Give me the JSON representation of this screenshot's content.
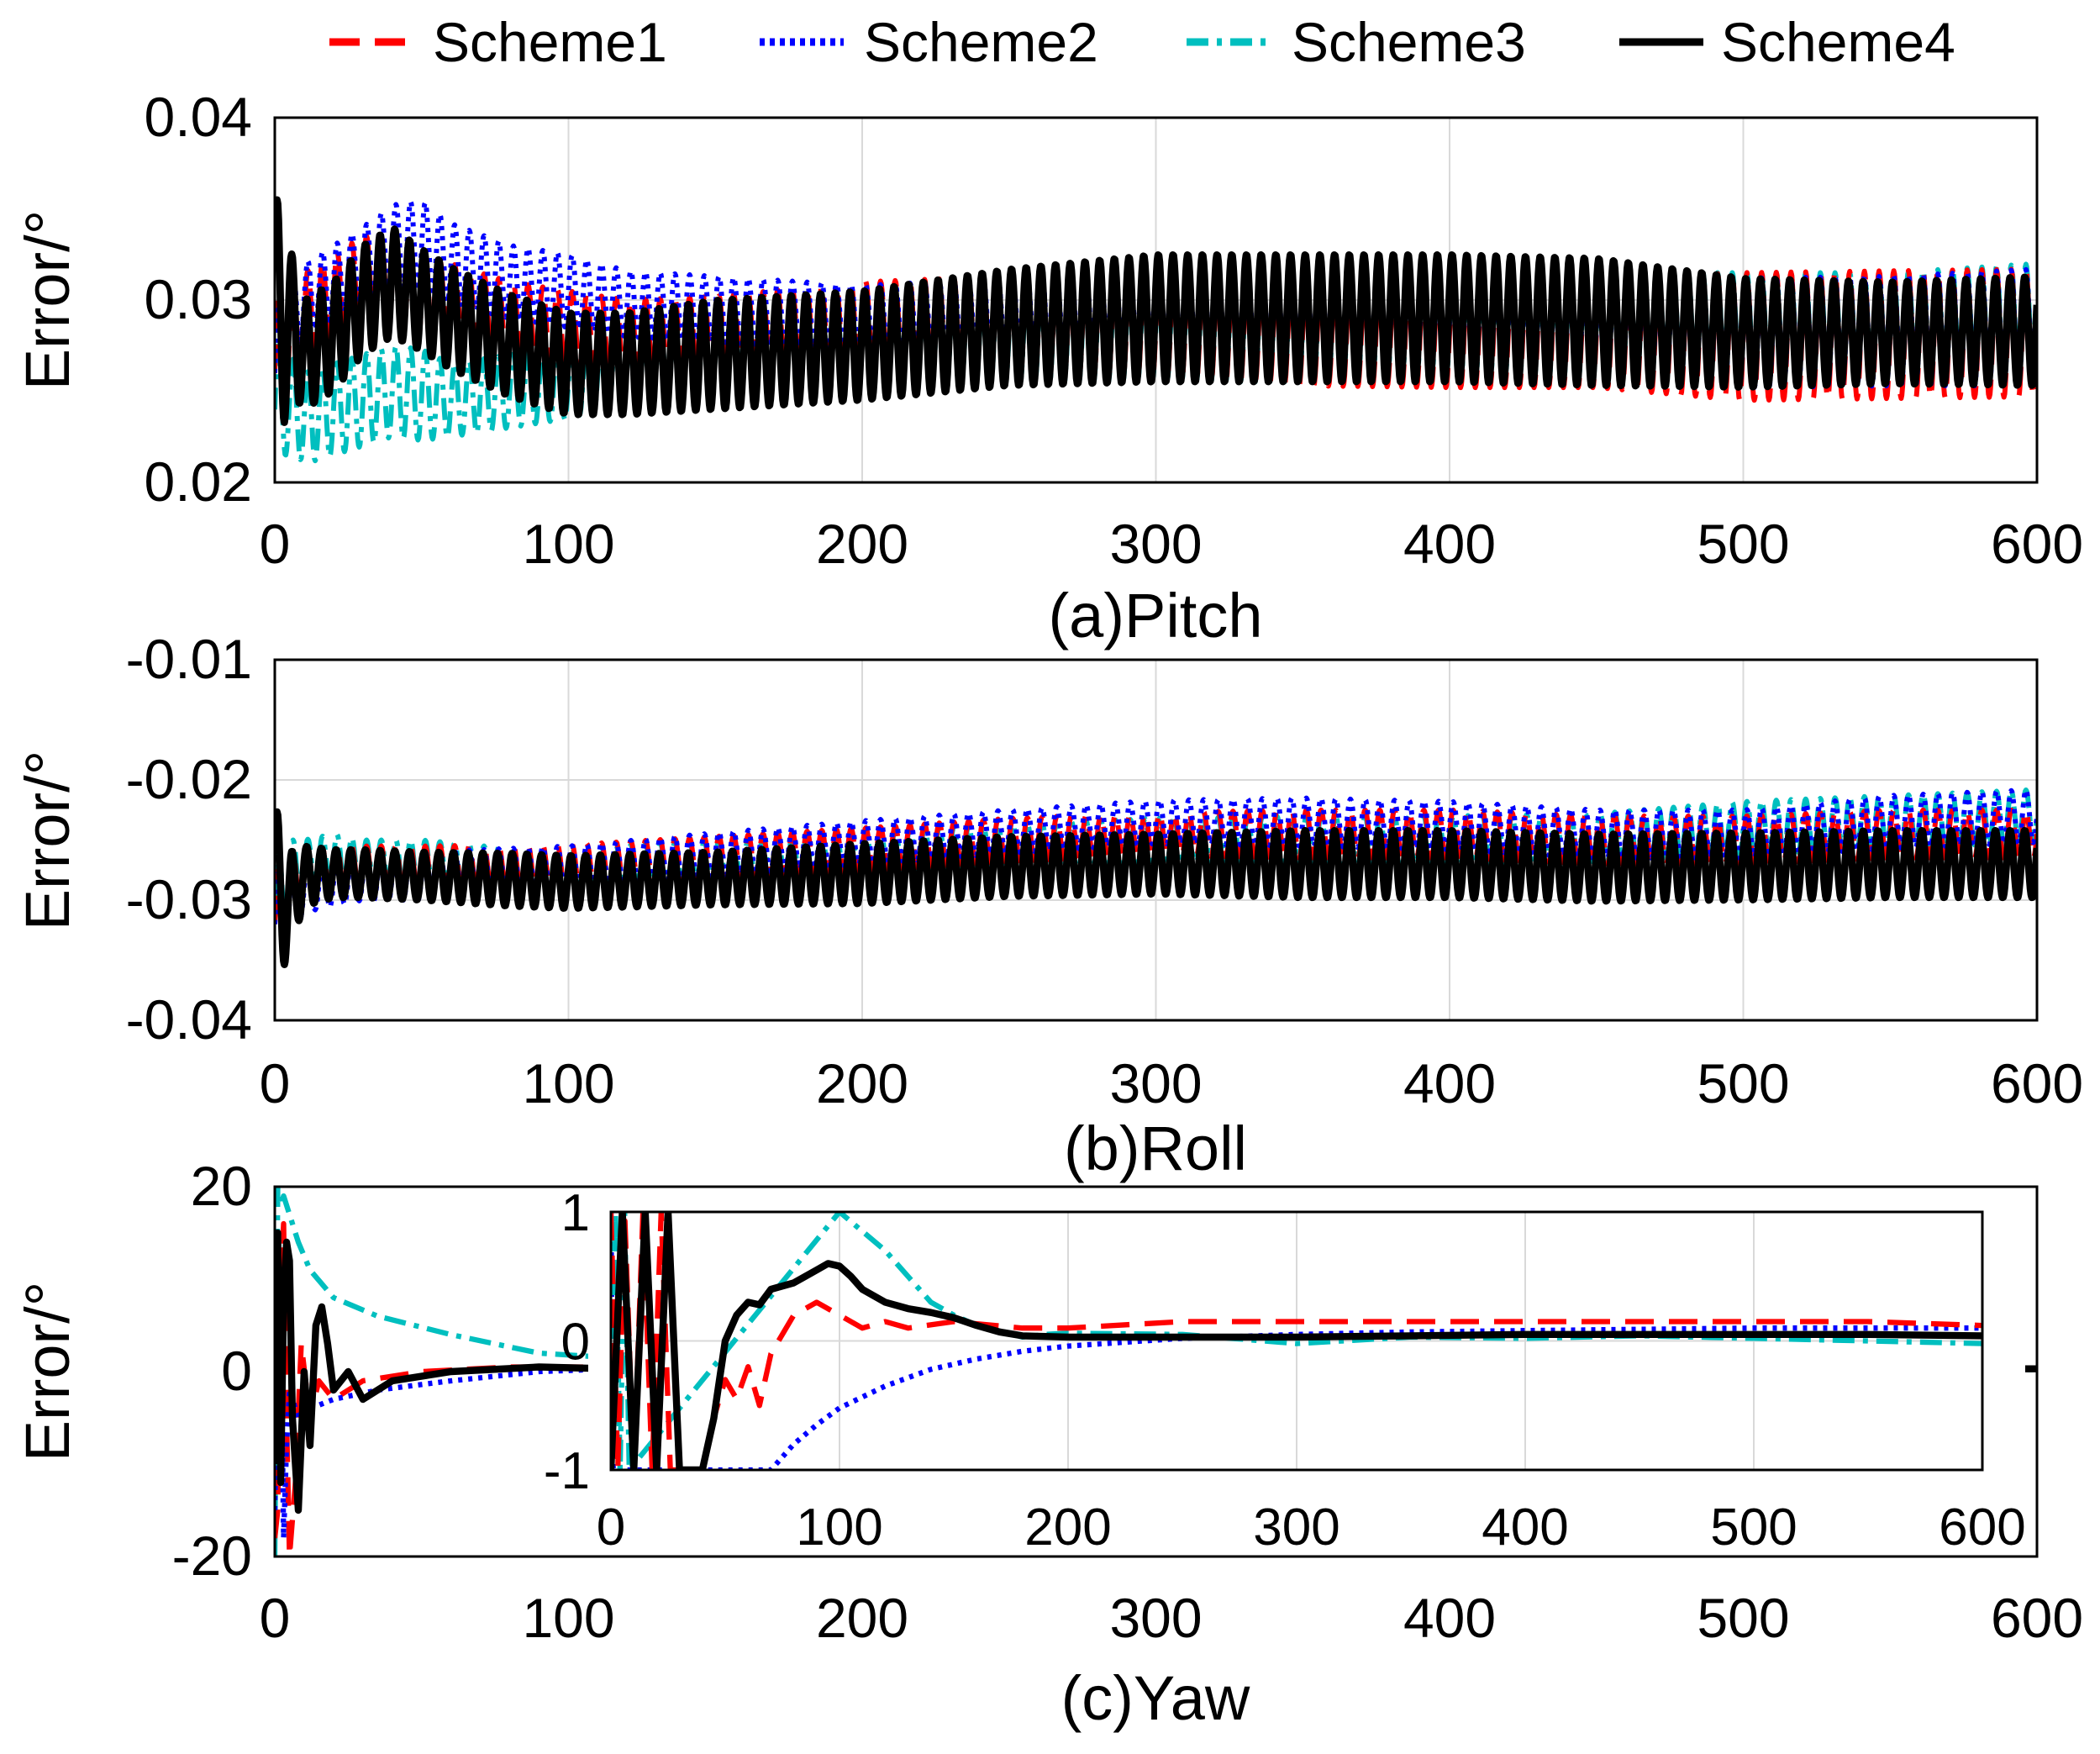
{
  "legend": {
    "entries": [
      {
        "name": "Scheme1",
        "color": "#ff0000",
        "dash": "dashed"
      },
      {
        "name": "Scheme2",
        "color": "#0000ff",
        "dash": "dotted"
      },
      {
        "name": "Scheme3",
        "color": "#00bfbf",
        "dash": "dashdot"
      },
      {
        "name": "Scheme4",
        "color": "#000000",
        "dash": "solid"
      }
    ]
  },
  "chart_data": [
    {
      "type": "line",
      "id": "pitch",
      "title": "(a)Pitch",
      "ylabel": "Error/°",
      "xlabel": "",
      "xlim": [
        0,
        600
      ],
      "ylim": [
        0.02,
        0.04
      ],
      "xticks": [
        "0",
        "100",
        "200",
        "300",
        "400",
        "500",
        "600"
      ],
      "yticks": [
        "0.02",
        "0.03",
        "0.04"
      ],
      "grid": true,
      "x": [
        0,
        5,
        10,
        20,
        30,
        40,
        50,
        60,
        80,
        100,
        120,
        150,
        200,
        250,
        300,
        350,
        400,
        450,
        500,
        550,
        600
      ],
      "oscillation_period": 5,
      "series": [
        {
          "name": "Scheme1",
          "center": [
            0.026,
            0.028,
            0.029,
            0.03,
            0.031,
            0.031,
            0.03,
            0.03,
            0.029,
            0.0285,
            0.028,
            0.0282,
            0.0285,
            0.0285,
            0.0285,
            0.0283,
            0.0282,
            0.0282,
            0.028,
            0.0281,
            0.0282
          ],
          "amplitude": [
            0.004,
            0.003,
            0.0025,
            0.0025,
            0.0025,
            0.0025,
            0.0025,
            0.002,
            0.002,
            0.002,
            0.002,
            0.002,
            0.0025,
            0.0028,
            0.003,
            0.003,
            0.003,
            0.003,
            0.0035,
            0.0035,
            0.0035
          ]
        },
        {
          "name": "Scheme2",
          "center": [
            0.026,
            0.029,
            0.03,
            0.031,
            0.032,
            0.033,
            0.033,
            0.032,
            0.031,
            0.0305,
            0.0298,
            0.0295,
            0.029,
            0.0292,
            0.0292,
            0.029,
            0.0288,
            0.0285,
            0.0282,
            0.0283,
            0.0285
          ],
          "amplitude": [
            0.003,
            0.002,
            0.002,
            0.002,
            0.002,
            0.0022,
            0.0025,
            0.0022,
            0.002,
            0.002,
            0.0018,
            0.0018,
            0.0018,
            0.002,
            0.0022,
            0.0022,
            0.0025,
            0.0025,
            0.003,
            0.003,
            0.0032
          ]
        },
        {
          "name": "Scheme3",
          "center": [
            0.024,
            0.0245,
            0.0235,
            0.024,
            0.0245,
            0.025,
            0.0248,
            0.0245,
            0.025,
            0.0255,
            0.0265,
            0.027,
            0.0278,
            0.0282,
            0.0285,
            0.0285,
            0.0285,
            0.0285,
            0.0285,
            0.0285,
            0.0288
          ],
          "amplitude": [
            0.004,
            0.0025,
            0.0025,
            0.0025,
            0.0025,
            0.0025,
            0.0025,
            0.002,
            0.002,
            0.002,
            0.002,
            0.002,
            0.0025,
            0.0028,
            0.003,
            0.003,
            0.003,
            0.003,
            0.003,
            0.003,
            0.0032
          ]
        },
        {
          "name": "Scheme4",
          "center": [
            0.028,
            0.029,
            0.027,
            0.028,
            0.03,
            0.031,
            0.03,
            0.029,
            0.0275,
            0.0265,
            0.0265,
            0.027,
            0.0275,
            0.0285,
            0.029,
            0.029,
            0.029,
            0.0288,
            0.0282,
            0.0282,
            0.0283
          ],
          "amplitude": [
            0.008,
            0.004,
            0.003,
            0.003,
            0.003,
            0.003,
            0.0028,
            0.0028,
            0.0028,
            0.0028,
            0.0028,
            0.003,
            0.003,
            0.0032,
            0.0035,
            0.0035,
            0.0035,
            0.0035,
            0.003,
            0.0028,
            0.003
          ]
        }
      ]
    },
    {
      "type": "line",
      "id": "roll",
      "title": "(b)Roll",
      "ylabel": "Error/°",
      "xlabel": "",
      "xlim": [
        0,
        600
      ],
      "ylim": [
        -0.04,
        -0.01
      ],
      "xticks": [
        "0",
        "100",
        "200",
        "300",
        "400",
        "500",
        "600"
      ],
      "yticks": [
        "-0.04",
        "-0.03",
        "-0.02",
        "-0.01"
      ],
      "grid": true,
      "x": [
        0,
        5,
        10,
        20,
        30,
        50,
        80,
        100,
        150,
        200,
        250,
        300,
        350,
        400,
        450,
        500,
        550,
        600
      ],
      "oscillation_period": 5,
      "series": [
        {
          "name": "Scheme1",
          "center": [
            -0.032,
            -0.029,
            -0.028,
            -0.0275,
            -0.0275,
            -0.0275,
            -0.0272,
            -0.0272,
            -0.0265,
            -0.0258,
            -0.025,
            -0.0245,
            -0.0245,
            -0.0245,
            -0.025,
            -0.025,
            -0.0245,
            -0.0245
          ],
          "amplitude": [
            0.004,
            0.003,
            0.002,
            0.002,
            0.002,
            0.002,
            0.0018,
            0.0018,
            0.0018,
            0.0018,
            0.0018,
            0.0018,
            0.002,
            0.002,
            0.002,
            0.002,
            0.002,
            0.002
          ]
        },
        {
          "name": "Scheme2",
          "center": [
            -0.032,
            -0.03,
            -0.029,
            -0.0285,
            -0.028,
            -0.028,
            -0.0275,
            -0.0273,
            -0.0262,
            -0.0252,
            -0.0243,
            -0.0235,
            -0.0235,
            -0.0238,
            -0.0245,
            -0.0245,
            -0.0235,
            -0.023
          ],
          "amplitude": [
            0.004,
            0.003,
            0.002,
            0.002,
            0.002,
            0.002,
            0.0018,
            0.0018,
            0.0018,
            0.0018,
            0.0018,
            0.0018,
            0.002,
            0.002,
            0.002,
            0.002,
            0.0022,
            0.0022
          ]
        },
        {
          "name": "Scheme3",
          "center": [
            -0.03,
            -0.028,
            -0.027,
            -0.0265,
            -0.027,
            -0.027,
            -0.0275,
            -0.0275,
            -0.0268,
            -0.026,
            -0.0255,
            -0.025,
            -0.025,
            -0.025,
            -0.0248,
            -0.024,
            -0.0235,
            -0.023
          ],
          "amplitude": [
            0.004,
            0.003,
            0.002,
            0.002,
            0.002,
            0.002,
            0.0018,
            0.0018,
            0.0018,
            0.0018,
            0.0018,
            0.0018,
            0.002,
            0.002,
            0.002,
            0.0022,
            0.0022,
            0.0022
          ]
        },
        {
          "name": "Scheme4",
          "center": [
            -0.03,
            -0.03,
            -0.028,
            -0.0278,
            -0.0278,
            -0.028,
            -0.0283,
            -0.0285,
            -0.0282,
            -0.0278,
            -0.0272,
            -0.027,
            -0.027,
            -0.027,
            -0.0273,
            -0.0272,
            -0.027,
            -0.027
          ],
          "amplitude": [
            0.008,
            0.004,
            0.0025,
            0.002,
            0.002,
            0.002,
            0.0022,
            0.0022,
            0.0022,
            0.0025,
            0.0025,
            0.0025,
            0.0028,
            0.0028,
            0.0028,
            0.0028,
            0.0028,
            0.0028
          ]
        }
      ]
    },
    {
      "type": "line",
      "id": "yaw",
      "title": "(c)Yaw",
      "ylabel": "Error/°",
      "xlabel": "",
      "xlim": [
        0,
        600
      ],
      "ylim": [
        -20,
        20
      ],
      "xticks": [
        "0",
        "100",
        "200",
        "300",
        "400",
        "500",
        "600"
      ],
      "yticks": [
        "-20",
        "0",
        "20"
      ],
      "grid": false,
      "series": [
        {
          "name": "Scheme1",
          "x": [
            0,
            1,
            2,
            3,
            4,
            5,
            7,
            9,
            12,
            15,
            20,
            30,
            50,
            80,
            115,
            600
          ],
          "y": [
            -18,
            -15,
            10,
            16,
            -5,
            -20,
            -12,
            3,
            -5,
            -1,
            -3,
            -1,
            0,
            0.5,
            0.5,
            0.4
          ]
        },
        {
          "name": "Scheme2",
          "x": [
            0,
            1,
            2,
            3,
            4,
            5,
            8,
            12,
            20,
            35,
            60,
            90,
            115,
            600
          ],
          "y": [
            -15,
            5,
            8,
            -18,
            -8,
            -2,
            -5,
            -4,
            -3,
            -2,
            -1,
            0,
            0.3,
            0.4
          ]
        },
        {
          "name": "Scheme3",
          "x": [
            0,
            1,
            2,
            3,
            5,
            8,
            12,
            20,
            35,
            60,
            90,
            115,
            600
          ],
          "y": [
            -20,
            20,
            18,
            19,
            17,
            14,
            11,
            8,
            6,
            4,
            2,
            1.5,
            0.2
          ]
        },
        {
          "name": "Scheme4",
          "x": [
            0,
            1,
            2,
            3,
            4,
            5,
            6,
            8,
            10,
            12,
            14,
            16,
            18,
            20,
            25,
            30,
            40,
            60,
            90,
            115,
            600
          ],
          "y": [
            -10,
            15,
            -12,
            8,
            14,
            12,
            -5,
            -15,
            0,
            -8,
            5,
            7,
            3,
            -2,
            0,
            -3,
            -1,
            0,
            0.5,
            0.3,
            0.3
          ]
        }
      ],
      "inset": {
        "xlim": [
          0,
          600
        ],
        "ylim": [
          -1,
          1
        ],
        "xticks": [
          "0",
          "100",
          "200",
          "300",
          "400",
          "500",
          "600"
        ],
        "yticks": [
          "-1",
          "0",
          "1"
        ],
        "grid": true,
        "series": [
          {
            "name": "Scheme1",
            "x": [
              0,
              3,
              6,
              10,
              14,
              18,
              22,
              26,
              30,
              34,
              40,
              45,
              50,
              55,
              60,
              65,
              70,
              80,
              90,
              100,
              110,
              120,
              130,
              150,
              180,
              200,
              250,
              300,
              350,
              400,
              450,
              500,
              550,
              600
            ],
            "y": [
              1,
              -1,
              1,
              -1,
              1,
              -1,
              1,
              -1,
              -1,
              -1,
              -1,
              -0.6,
              -0.3,
              -0.45,
              -0.2,
              -0.5,
              -0.1,
              0.2,
              0.3,
              0.2,
              0.1,
              0.15,
              0.1,
              0.15,
              0.1,
              0.1,
              0.15,
              0.15,
              0.15,
              0.15,
              0.15,
              0.15,
              0.15,
              0.12
            ]
          },
          {
            "name": "Scheme2",
            "x": [
              0,
              1,
              2,
              70,
              80,
              90,
              100,
              120,
              140,
              160,
              180,
              200,
              250,
              300,
              350,
              400,
              450,
              500,
              550,
              600
            ],
            "y": [
              1,
              -1,
              -1,
              -1,
              -0.8,
              -0.65,
              -0.52,
              -0.35,
              -0.22,
              -0.14,
              -0.08,
              -0.04,
              0.02,
              0.05,
              0.07,
              0.08,
              0.09,
              0.1,
              0.1,
              0.1
            ]
          },
          {
            "name": "Scheme3",
            "x": [
              0,
              2,
              4,
              6,
              8,
              100,
              110,
              120,
              130,
              140,
              150,
              160,
              170,
              180,
              190,
              200,
              250,
              300,
              350,
              400,
              450,
              500,
              550,
              600
            ],
            "y": [
              -1,
              1,
              -1,
              1,
              -1,
              1,
              0.85,
              0.7,
              0.5,
              0.3,
              0.2,
              0.12,
              0.08,
              0.03,
              0.05,
              0.06,
              0.05,
              -0.02,
              0.03,
              0.02,
              0.04,
              0.02,
              0.0,
              -0.02
            ]
          },
          {
            "name": "Scheme4",
            "x": [
              0,
              5,
              10,
              15,
              20,
              25,
              30,
              40,
              45,
              50,
              55,
              60,
              65,
              70,
              80,
              90,
              95,
              100,
              105,
              110,
              120,
              130,
              140,
              150,
              160,
              170,
              180,
              200,
              250,
              300,
              350,
              400,
              450,
              500,
              550,
              600
            ],
            "y": [
              -1,
              1,
              -1,
              1,
              -1,
              1,
              -1,
              -1,
              -0.6,
              0.0,
              0.2,
              0.3,
              0.28,
              0.4,
              0.45,
              0.55,
              0.6,
              0.58,
              0.5,
              0.4,
              0.3,
              0.25,
              0.22,
              0.18,
              0.12,
              0.07,
              0.04,
              0.03,
              0.03,
              0.03,
              0.04,
              0.05,
              0.05,
              0.05,
              0.05,
              0.04
            ]
          }
        ]
      }
    }
  ]
}
